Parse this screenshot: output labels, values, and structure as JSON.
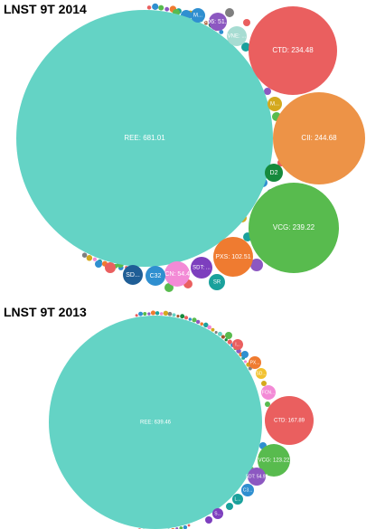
{
  "chart_data": [
    {
      "type": "bubble",
      "title": "LNST 9T 2014",
      "bubbles": [
        {
          "label": "REE: 681.01",
          "value": 681.01,
          "color": "#64d3c5"
        },
        {
          "label": "CII: 244.68",
          "value": 244.68,
          "color": "#ed9347"
        },
        {
          "label": "VCG: 239.22",
          "value": 239.22,
          "color": "#58bb4e"
        },
        {
          "label": "CTD: 234.48",
          "value": 234.48,
          "color": "#ea5f5f"
        },
        {
          "label": "PXS: 102.51",
          "value": 102.51,
          "color": "#ef7b30"
        },
        {
          "label": "FCN: 54.47",
          "value": 54.47,
          "color": "#f38ad6"
        },
        {
          "label": "SD6: 51.47",
          "value": 51.47,
          "color": "#8c58c1"
        },
        {
          "label": "SDT: ...",
          "value": 42,
          "color": "#7d3fbe"
        },
        {
          "label": "VNE: ...",
          "value": 40,
          "color": "#a7dcd2"
        },
        {
          "label": "C32",
          "value": 38,
          "color": "#2f8fd0"
        },
        {
          "label": "SD...",
          "value": 36,
          "color": "#1f5e96"
        },
        {
          "label": "SR",
          "value": 24,
          "color": "#1aa19c"
        },
        {
          "label": "D2",
          "value": 22,
          "color": "#168a3d"
        },
        {
          "label": "M...",
          "value": 17,
          "color": "#2f8fd0"
        },
        {
          "label": "M...",
          "value": 17,
          "color": "#d4a91e"
        }
      ]
    },
    {
      "type": "bubble",
      "title": "LNST 9T 2013",
      "bubbles": [
        {
          "label": "REE: 639.46",
          "value": 639.46,
          "color": "#64d3c5"
        },
        {
          "label": "CTD: 167.89",
          "value": 167.89,
          "color": "#ea5f5f"
        },
        {
          "label": "VCG: 123.22",
          "value": 123.22,
          "color": "#58bb4e"
        },
        {
          "label": "SDT: 54.97",
          "value": 54.97,
          "color": "#8c58c1"
        },
        {
          "label": "FCN...",
          "value": 30,
          "color": "#f38ad6"
        },
        {
          "label": "C3...",
          "value": 22,
          "color": "#2f8fd0"
        },
        {
          "label": "PX...",
          "value": 16,
          "color": "#ef7b30"
        },
        {
          "label": "SD...",
          "value": 14,
          "color": "#f2c230"
        },
        {
          "label": "L...",
          "value": 14,
          "color": "#1aa19c"
        },
        {
          "label": "I...",
          "value": 12,
          "color": "#ea5f5f"
        },
        {
          "label": "S...",
          "value": 12,
          "color": "#7d3fbe"
        }
      ]
    }
  ]
}
